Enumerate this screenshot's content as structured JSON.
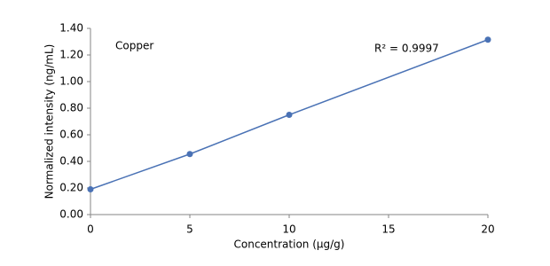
{
  "chart_data": {
    "type": "line",
    "x": [
      0,
      5,
      10,
      20
    ],
    "values": [
      0.19,
      0.455,
      0.75,
      1.315
    ],
    "color": "#4a72b5",
    "xlabel": "Concentration (µg/g)",
    "ylabel": "Normalized intensity (ng/mL)",
    "xlim": [
      0,
      20
    ],
    "xticks": [
      0,
      5,
      10,
      15,
      20
    ],
    "ylim": [
      0,
      1.4
    ],
    "yticks": [
      {
        "value": 0,
        "label": "0.00"
      },
      {
        "value": 0.2,
        "label": "0.20"
      },
      {
        "value": 0.4,
        "label": "0.40"
      },
      {
        "value": 0.6,
        "label": "0.60"
      },
      {
        "value": 0.8,
        "label": "0.80"
      },
      {
        "value": 1.0,
        "label": "1.00"
      },
      {
        "value": 1.2,
        "label": "1.20"
      },
      {
        "value": 1.4,
        "label": "1.40"
      }
    ],
    "annotations": [
      "Copper",
      "R² = 0.9997"
    ],
    "grid": false
  }
}
